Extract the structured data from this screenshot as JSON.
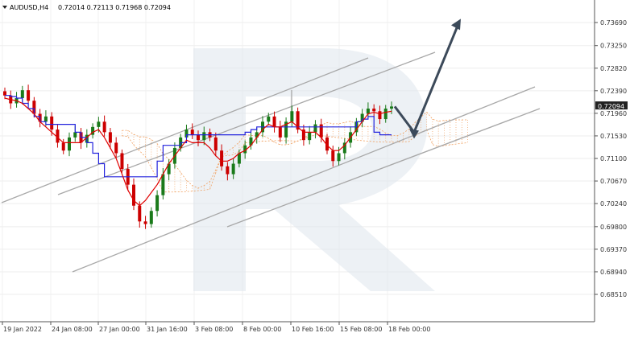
{
  "header": {
    "symbol_timeframe": "AUDUSD,H4",
    "ohlc": "0.72014 0.72113 0.71968 0.72094"
  },
  "price_axis": {
    "labels": [
      "0.73690",
      "0.73250",
      "0.72820",
      "0.72390",
      "0.71960",
      "0.71530",
      "0.71100",
      "0.70670",
      "0.70240",
      "0.69800",
      "0.69370",
      "0.68940",
      "0.68510"
    ],
    "current_price": "0.72094"
  },
  "time_axis": {
    "labels": [
      "19 Jan 2022",
      "24 Jan 08:00",
      "27 Jan 00:00",
      "31 Jan 16:00",
      "3 Feb 08:00",
      "8 Feb 00:00",
      "10 Feb 16:00",
      "15 Feb 08:00",
      "18 Feb 00:00"
    ]
  },
  "colors": {
    "bull_candle": "#1a7a1a",
    "bear_candle": "#cc0000",
    "tenkan": "#e00000",
    "kijun": "#1a1adc",
    "cloud": "#f0a060",
    "trendline": "#9a9a9a",
    "forecast_arrow": "#3a4a5a",
    "watermark": "#dde3ea"
  },
  "chart_data": {
    "type": "candlestick",
    "title": "AUDUSD,H4",
    "y_range": [
      0.6851,
      0.739
    ],
    "x_labels": [
      "19 Jan 2022",
      "24 Jan 08:00",
      "27 Jan 00:00",
      "31 Jan 16:00",
      "3 Feb 08:00",
      "8 Feb 00:00",
      "10 Feb 16:00",
      "15 Feb 08:00",
      "18 Feb 00:00"
    ],
    "last": {
      "open": 0.72014,
      "high": 0.72113,
      "low": 0.71968,
      "close": 0.72094
    },
    "closes": [
      0.723,
      0.7215,
      0.7225,
      0.724,
      0.722,
      0.7195,
      0.718,
      0.719,
      0.7165,
      0.714,
      0.7125,
      0.715,
      0.716,
      0.714,
      0.7155,
      0.717,
      0.718,
      0.716,
      0.714,
      0.712,
      0.709,
      0.706,
      0.702,
      0.699,
      0.6985,
      0.701,
      0.704,
      0.708,
      0.71,
      0.713,
      0.715,
      0.7165,
      0.7155,
      0.7145,
      0.716,
      0.715,
      0.7125,
      0.7095,
      0.708,
      0.71,
      0.712,
      0.7135,
      0.715,
      0.716,
      0.718,
      0.719,
      0.717,
      0.715,
      0.718,
      0.72,
      0.7165,
      0.7145,
      0.716,
      0.7175,
      0.715,
      0.7125,
      0.7105,
      0.712,
      0.714,
      0.716,
      0.718,
      0.7195,
      0.7205,
      0.72,
      0.7185,
      0.7205,
      0.7209
    ],
    "tenkan_sen": [
      0.7225,
      0.7222,
      0.722,
      0.7215,
      0.7205,
      0.7195,
      0.718,
      0.717,
      0.716,
      0.715,
      0.714,
      0.714,
      0.714,
      0.714,
      0.715,
      0.716,
      0.7165,
      0.715,
      0.713,
      0.711,
      0.708,
      0.705,
      0.703,
      0.702,
      0.703,
      0.7045,
      0.706,
      0.708,
      0.71,
      0.7115,
      0.713,
      0.7145,
      0.714,
      0.714,
      0.714,
      0.713,
      0.7115,
      0.7105,
      0.7105,
      0.711,
      0.712,
      0.7125,
      0.7135,
      0.715,
      0.7165,
      0.7175,
      0.717,
      0.717,
      0.7175,
      0.718,
      0.717,
      0.716,
      0.716,
      0.716,
      0.715,
      0.7135,
      0.7125,
      0.7125,
      0.7135,
      0.715,
      0.7165,
      0.718,
      0.7195,
      0.7198,
      0.7195,
      0.7198,
      0.72
    ],
    "kijun_sen": [
      0.723,
      0.7228,
      0.7225,
      0.7215,
      0.7205,
      0.719,
      0.718,
      0.7175,
      0.7175,
      0.7175,
      0.7175,
      0.7175,
      0.716,
      0.715,
      0.714,
      0.712,
      0.71,
      0.7075,
      0.7075,
      0.7075,
      0.7075,
      0.7075,
      0.7075,
      0.7075,
      0.7075,
      0.7075,
      0.7105,
      0.7135,
      0.7135,
      0.7135,
      0.714,
      0.7155,
      0.7155,
      0.7155,
      0.7155,
      0.7155,
      0.7155,
      0.7155,
      0.7155,
      0.7155,
      0.7155,
      0.716,
      0.7165,
      0.717,
      0.717,
      0.717,
      0.717,
      0.717,
      0.717,
      0.717,
      0.717,
      0.717,
      0.717,
      0.717,
      0.717,
      0.717,
      0.717,
      0.717,
      0.717,
      0.717,
      0.718,
      0.7185,
      0.719,
      0.716,
      0.7155,
      0.7155,
      0.7155
    ],
    "forecast": [
      0.7209,
      0.716,
      0.737
    ]
  }
}
